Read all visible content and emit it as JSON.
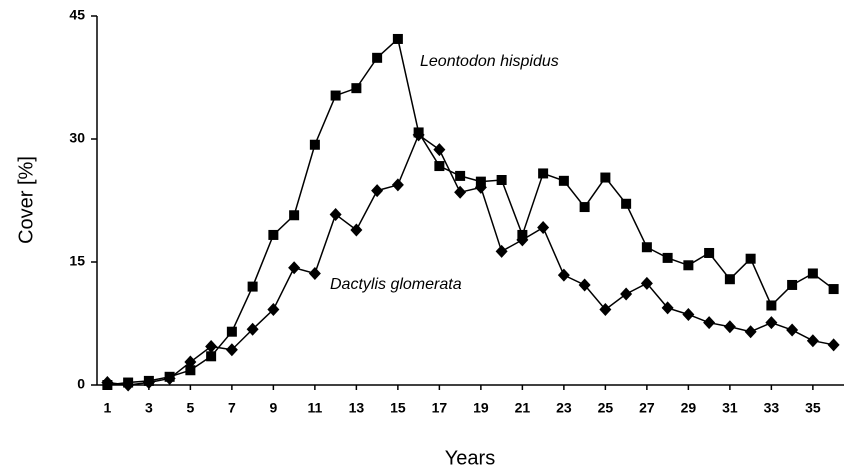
{
  "chart_data": {
    "type": "line",
    "x_label": "Years",
    "y_label": "Cover [%]",
    "x": [
      1,
      2,
      3,
      4,
      5,
      6,
      7,
      8,
      9,
      10,
      11,
      12,
      13,
      14,
      15,
      16,
      17,
      18,
      19,
      20,
      21,
      22,
      23,
      24,
      25,
      26,
      27,
      28,
      29,
      30,
      31,
      32,
      33,
      34,
      35,
      36
    ],
    "xlim": [
      0.5,
      36.5
    ],
    "xticks": [
      1,
      3,
      5,
      7,
      9,
      11,
      13,
      15,
      17,
      19,
      21,
      23,
      25,
      27,
      29,
      31,
      33,
      35
    ],
    "ylim": [
      0,
      45
    ],
    "yticks": [
      0,
      15,
      30,
      45
    ],
    "series": [
      {
        "name": "Leontodon hispidus",
        "color": "#000000",
        "marker": "square",
        "values": [
          0,
          0.3,
          0.5,
          1,
          1.8,
          3.5,
          6.5,
          12,
          18.3,
          20.7,
          29.3,
          35.3,
          36.2,
          39.9,
          42.2,
          30.8,
          26.7,
          25.5,
          24.8,
          25,
          18.3,
          25.8,
          24.9,
          21.7,
          25.3,
          22.1,
          16.8,
          15.5,
          14.6,
          16.1,
          12.9,
          15.4,
          9.7,
          12.2,
          13.6,
          11.7
        ]
      },
      {
        "name": "Dactylis glomerata",
        "color": "#000000",
        "marker": "diamond",
        "values": [
          0.3,
          0,
          0.3,
          0.8,
          2.8,
          4.7,
          4.3,
          6.8,
          9.2,
          14.3,
          13.6,
          20.8,
          18.9,
          23.7,
          24.4,
          30.5,
          28.7,
          23.5,
          24.1,
          16.3,
          17.7,
          19.2,
          13.4,
          12.2,
          9.2,
          11.1,
          12.4,
          9.4,
          8.6,
          7.6,
          7.1,
          6.5,
          7.6,
          6.7,
          5.4,
          4.9
        ]
      }
    ]
  }
}
